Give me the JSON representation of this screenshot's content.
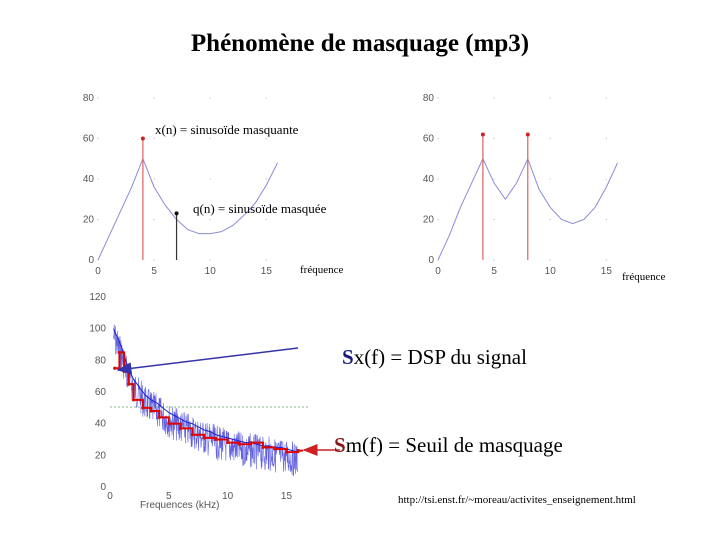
{
  "title": "Phénomène de masquage (mp3)",
  "annotations": {
    "masking_label": "x(n) = sinusoïde masquante",
    "masked_label": "q(n) = sinusoïde masquée",
    "freq_label_left": "fréquence",
    "freq_label_right": "fréquence",
    "dsp_prefix": "S",
    "dsp_rest": "x(f) = DSP du signal",
    "threshold_prefix": "S",
    "threshold_rest": "m(f) = Seuil de masquage",
    "xlabel_bottom": "Frequences (kHz)",
    "url": "http://tsi.enst.fr/~moreau/activites_enseignement.html"
  },
  "colors": {
    "stem": "#e06060",
    "masking_curve": "#8a8ad8",
    "masked_stem": "#333333",
    "dsp": "#2020d0",
    "threshold": "#e00000",
    "arrow_blue": "#3333aa",
    "arrow_red": "#cc2222"
  },
  "chart_data": [
    {
      "type": "line",
      "xlim": [
        0,
        18
      ],
      "ylim": [
        0,
        80
      ],
      "xticks": [
        "0",
        "5",
        "10",
        "15"
      ],
      "yticks": [
        "0",
        "20",
        "40",
        "60",
        "80"
      ],
      "stems": [
        {
          "x": 4,
          "y": 60,
          "role": "masking"
        },
        {
          "x": 7,
          "y": 23,
          "role": "masked"
        }
      ],
      "threshold": {
        "x": [
          0,
          1,
          2,
          3,
          4,
          5,
          6,
          7,
          8,
          9,
          10,
          11,
          12,
          13,
          14,
          15,
          16
        ],
        "y": [
          0,
          12,
          24,
          36,
          50,
          36,
          27,
          20,
          15,
          13,
          13,
          14,
          17,
          22,
          28,
          37,
          48
        ]
      }
    },
    {
      "type": "line",
      "xlim": [
        0,
        18
      ],
      "ylim": [
        0,
        80
      ],
      "xticks": [
        "0",
        "5",
        "10",
        "15"
      ],
      "yticks": [
        "0",
        "20",
        "40",
        "60",
        "80"
      ],
      "stems": [
        {
          "x": 4,
          "y": 62,
          "role": "masking"
        },
        {
          "x": 8,
          "y": 62,
          "role": "masking"
        }
      ],
      "threshold": {
        "x": [
          0,
          1,
          2,
          3,
          4,
          5,
          6,
          7,
          8,
          9,
          10,
          11,
          12,
          13,
          14,
          15,
          16
        ],
        "y": [
          0,
          12,
          26,
          38,
          50,
          38,
          30,
          38,
          50,
          35,
          26,
          20,
          18,
          20,
          26,
          36,
          48
        ]
      }
    },
    {
      "type": "line",
      "xlim": [
        0,
        17
      ],
      "ylim": [
        0,
        120
      ],
      "xticks": [
        "0",
        "5",
        "10",
        "15"
      ],
      "yticks": [
        "0",
        "20",
        "40",
        "60",
        "80",
        "100",
        "120"
      ],
      "xlabel": "Frequences (kHz)",
      "series": [
        {
          "role": "dsp",
          "x": [
            0.3,
            0.6,
            1,
            1.5,
            2,
            2.5,
            3,
            3.5,
            4,
            4.5,
            5,
            5.5,
            6,
            6.5,
            7,
            7.5,
            8,
            8.5,
            9,
            9.5,
            10,
            10.5,
            11,
            11.5,
            12,
            12.5,
            13,
            13.5,
            14,
            14.5,
            15,
            15.5,
            16
          ],
          "y": [
            100,
            95,
            88,
            76,
            68,
            63,
            58,
            55,
            53,
            50,
            47,
            45,
            43,
            41,
            40,
            38,
            36,
            35,
            33,
            32,
            31,
            30,
            29,
            28,
            28,
            27,
            26,
            26,
            25,
            25,
            24,
            23,
            22
          ]
        },
        {
          "role": "threshold",
          "x": [
            0.4,
            0.8,
            1.2,
            1.6,
            2,
            2.8,
            3.5,
            4.2,
            5,
            6,
            7,
            8,
            9,
            10,
            11,
            12,
            13,
            14,
            15,
            16
          ],
          "y": [
            75,
            85,
            73,
            65,
            55,
            50,
            48,
            44,
            40,
            37,
            33,
            31,
            30,
            28,
            27,
            28,
            25,
            24,
            22,
            23
          ]
        }
      ]
    }
  ]
}
